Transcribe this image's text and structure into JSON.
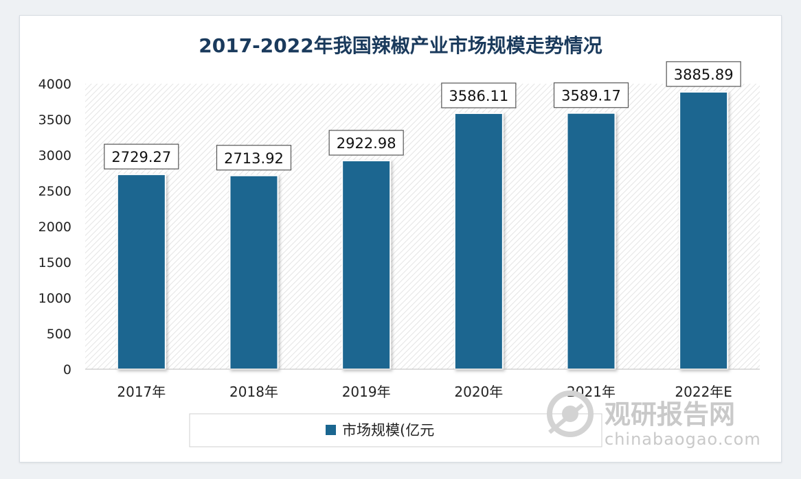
{
  "chart_data": {
    "type": "bar",
    "title": "2017-2022年我国辣椒产业市场规模走势情况",
    "categories": [
      "2017年",
      "2018年",
      "2019年",
      "2020年",
      "2021年",
      "2022年E"
    ],
    "series": [
      {
        "name": "市场规模(亿元",
        "values": [
          2729.27,
          2713.92,
          2922.98,
          3586.11,
          3589.17,
          3885.89
        ],
        "labels": [
          "2729.27",
          "2713.92",
          "2922.98",
          "3586.11",
          "3589.17",
          "3885.89"
        ]
      }
    ],
    "yticks": [
      "0",
      "500",
      "1000",
      "1500",
      "2000",
      "2500",
      "3000",
      "3500",
      "4000"
    ],
    "ylim": [
      0,
      4000
    ],
    "legend_position": "bottom",
    "bar_color": "#1a6690",
    "plot_pattern": "diagonal-hatch"
  },
  "watermark": {
    "main": "观研报告网",
    "sub": "chinabaogao.com"
  }
}
